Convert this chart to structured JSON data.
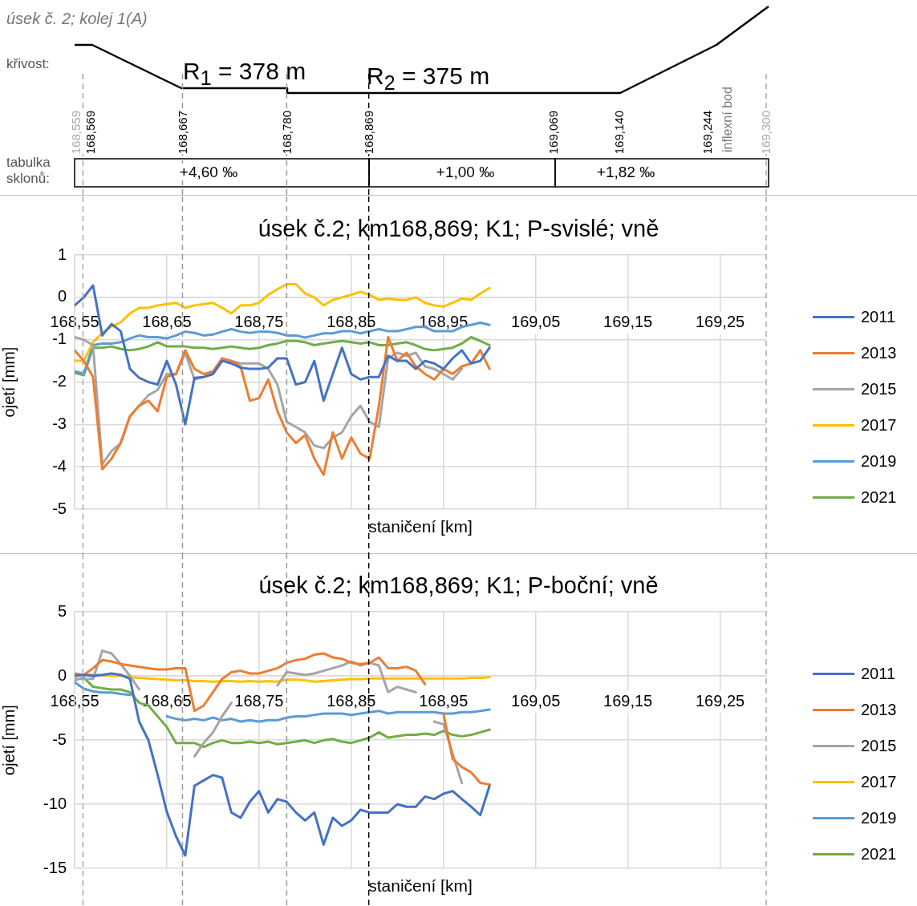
{
  "chart_data": [
    {
      "type": "line",
      "annotations": [
        "úsek č. 2; kolej 1(A)",
        "křivost:",
        "R$_{1}$ = 378 m",
        "R$_{2}$ = 375 m",
        "inflexní bod",
        "tabulka sklonů:",
        "168,559",
        "168,569",
        "168,667",
        "168,780",
        "168,869",
        "169,069",
        "169,140",
        "169,244",
        "169,300",
        "+4,60 ‰",
        "+1,00 ‰",
        "+1,82 ‰"
      ],
      "ref_lines": [
        {
          "axis": "x",
          "value": 168.559,
          "color": "#aaaaaa",
          "line_style": "dashed"
        },
        {
          "axis": "x",
          "value": 168.667,
          "color": "#999999",
          "line_style": "dashed"
        },
        {
          "axis": "x",
          "value": 168.78,
          "color": "#999999",
          "line_style": "dashed"
        },
        {
          "axis": "x",
          "value": 168.869,
          "color": "#000000",
          "line_style": "dashed"
        },
        {
          "axis": "x",
          "value": 169.3,
          "color": "#aaaaaa",
          "line_style": "dashed"
        }
      ],
      "title": "úsek č.2; km168,869; K1; P-svislé; vně",
      "xlabel": "staničení [km]",
      "ylabel": "ojetí [mm]",
      "grid": true,
      "legend": "right",
      "xlim": [
        168.55,
        169.3
      ],
      "xticks": [
        {
          "value": 168.55,
          "label": "168,55"
        },
        {
          "value": 168.65,
          "label": "168,65"
        },
        {
          "value": 168.75,
          "label": "168,75"
        },
        {
          "value": 168.85,
          "label": "168,85"
        },
        {
          "value": 168.95,
          "label": "168,95"
        },
        {
          "value": 169.05,
          "label": "169,05"
        },
        {
          "value": 169.15,
          "label": "169,15"
        },
        {
          "value": 169.25,
          "label": "169,25"
        }
      ],
      "ylim": [
        -5,
        1
      ],
      "yticks": [
        -5,
        -4,
        -3,
        -2,
        -1,
        0,
        1
      ],
      "x": [
        168.55,
        168.56,
        168.57,
        168.58,
        168.59,
        168.6,
        168.61,
        168.62,
        168.63,
        168.64,
        168.65,
        168.66,
        168.67,
        168.68,
        168.69,
        168.7,
        168.71,
        168.72,
        168.73,
        168.74,
        168.75,
        168.76,
        168.77,
        168.78,
        168.79,
        168.8,
        168.81,
        168.82,
        168.83,
        168.84,
        168.85,
        168.86,
        168.87,
        168.88,
        168.89,
        168.9,
        168.91,
        168.92,
        168.93,
        168.94,
        168.95,
        168.96,
        168.97,
        168.98,
        168.99,
        169.0
      ],
      "series": [
        {
          "name": "2011",
          "color": "#4472c4",
          "values": [
            -0.19,
            0,
            0.28,
            -0.9,
            -0.63,
            -0.8,
            -1.69,
            -1.9,
            -2.0,
            -2.06,
            -1.5,
            -2.06,
            -3.0,
            -1.9,
            -1.88,
            -1.81,
            -1.5,
            -1.56,
            -1.66,
            -1.69,
            -1.69,
            -1.66,
            -1.44,
            -1.44,
            -2.06,
            -2.0,
            -1.5,
            -2.44,
            -1.81,
            -1.19,
            -1.81,
            -1.94,
            -1.88,
            -1.88,
            -1.38,
            -1.5,
            -1.5,
            -1.69,
            -1.5,
            -1.56,
            -1.69,
            -1.44,
            -1.25,
            -1.56,
            -1.5,
            -1.19
          ]
        },
        {
          "name": "2013",
          "color": "#ed7d31",
          "values": [
            -1.25,
            -1.5,
            -1.88,
            -4.06,
            -3.81,
            -3.44,
            -2.81,
            -2.56,
            -2.44,
            -2.69,
            -1.88,
            -1.81,
            -1.25,
            -1.69,
            -1.81,
            -1.75,
            -1.44,
            -1.5,
            -1.63,
            -2.44,
            -2.38,
            -1.94,
            -2.69,
            -3.19,
            -3.44,
            -3.25,
            -3.81,
            -4.19,
            -3.19,
            -3.81,
            -3.31,
            -3.69,
            -3.81,
            -2.56,
            -0.94,
            -1.5,
            -1.31,
            -1.63,
            -1.81,
            -1.94,
            -1.69,
            -1.81,
            -1.63,
            -1.56,
            -1.25,
            -1.69
          ]
        },
        {
          "name": "2015",
          "color": "#a5a5a5",
          "values": [
            -0.94,
            -1.0,
            -1.13,
            -3.94,
            -3.63,
            -3.44,
            -2.81,
            -2.56,
            -2.31,
            -2.19,
            -1.81,
            -1.81,
            -1.31,
            -1.94,
            -1.88,
            -1.81,
            -1.5,
            -1.5,
            -1.56,
            -1.56,
            -1.56,
            -1.69,
            -2.06,
            -2.94,
            -3.06,
            -3.19,
            -3.5,
            -3.56,
            -3.31,
            -3.19,
            -2.81,
            -2.56,
            -2.94,
            -3.06,
            -1.44,
            -1.31,
            -1.38,
            -1.31,
            -1.63,
            -1.69,
            -1.81,
            -1.94,
            -1.69,
            null,
            null,
            null
          ]
        },
        {
          "name": "2017",
          "color": "#ffc000",
          "values": [
            -1.5,
            -1.5,
            -1.06,
            -0.84,
            -0.69,
            -0.59,
            -0.38,
            -0.25,
            -0.25,
            -0.19,
            -0.16,
            -0.13,
            -0.25,
            -0.19,
            -0.16,
            -0.13,
            -0.25,
            -0.38,
            -0.19,
            -0.19,
            -0.13,
            0.06,
            0.19,
            0.31,
            0.31,
            0.09,
            0,
            -0.19,
            -0.06,
            0,
            0.06,
            0.13,
            0.06,
            -0.06,
            -0.03,
            -0.06,
            -0.06,
            0,
            -0.13,
            -0.19,
            -0.22,
            -0.13,
            -0.03,
            -0.06,
            0.09,
            0.22
          ]
        },
        {
          "name": "2019",
          "color": "#5b9bd5",
          "values": [
            -1.75,
            -1.8,
            -1.13,
            -1.09,
            -1.09,
            -1.06,
            -0.97,
            -0.9,
            -0.94,
            -0.94,
            -0.97,
            -0.9,
            -0.81,
            -0.84,
            -0.9,
            -0.88,
            -0.81,
            -0.75,
            -0.81,
            -0.84,
            -0.81,
            -0.81,
            -0.84,
            -0.9,
            -0.9,
            -0.95,
            -0.9,
            -0.85,
            -0.85,
            -0.8,
            -0.8,
            -0.85,
            -0.8,
            -0.75,
            -0.8,
            -0.8,
            -0.75,
            -0.7,
            -0.7,
            -0.8,
            -0.8,
            -0.8,
            -0.7,
            -0.65,
            -0.6,
            -0.65
          ]
        },
        {
          "name": "2021",
          "color": "#70ad47",
          "values": [
            -1.78,
            -1.84,
            -1.19,
            -1.19,
            -1.16,
            -1.22,
            -1.25,
            -1.22,
            -1.16,
            -1.06,
            -1.16,
            -1.16,
            -1.16,
            -1.19,
            -1.19,
            -1.22,
            -1.19,
            -1.16,
            -1.19,
            -1.22,
            -1.19,
            -1.13,
            -1.09,
            -1.03,
            -1.03,
            -1.06,
            -1.13,
            -1.09,
            -1.06,
            -1.03,
            -1.06,
            -1.09,
            -1.06,
            -1.13,
            -1.13,
            -1.09,
            -1.06,
            -1.13,
            -1.22,
            -1.25,
            -1.22,
            -1.19,
            -1.09,
            -0.94,
            -1.03,
            -1.13
          ]
        }
      ]
    },
    {
      "type": "line",
      "title": "úsek č.2; km168,869; K1; P-boční; vně",
      "xlabel": "staničení [km]",
      "ylabel": "ojetí [mm]",
      "grid": true,
      "legend": "right",
      "xlim": [
        168.55,
        169.3
      ],
      "xticks": [
        {
          "value": 168.55,
          "label": "168,55"
        },
        {
          "value": 168.65,
          "label": "168,65"
        },
        {
          "value": 168.75,
          "label": "168,75"
        },
        {
          "value": 168.85,
          "label": "168,85"
        },
        {
          "value": 168.95,
          "label": "168,95"
        },
        {
          "value": 169.05,
          "label": "169,05"
        },
        {
          "value": 169.15,
          "label": "169,15"
        },
        {
          "value": 169.25,
          "label": "169,25"
        }
      ],
      "ylim": [
        -15,
        5
      ],
      "yticks": [
        -15,
        -10,
        -5,
        0,
        5
      ],
      "x": [
        168.55,
        168.56,
        168.57,
        168.58,
        168.59,
        168.6,
        168.61,
        168.62,
        168.63,
        168.64,
        168.65,
        168.66,
        168.67,
        168.68,
        168.69,
        168.7,
        168.71,
        168.72,
        168.73,
        168.74,
        168.75,
        168.76,
        168.77,
        168.78,
        168.79,
        168.8,
        168.81,
        168.82,
        168.83,
        168.84,
        168.85,
        168.86,
        168.87,
        168.88,
        168.89,
        168.9,
        168.91,
        168.92,
        168.93,
        168.94,
        168.95,
        168.96,
        168.97,
        168.98,
        168.99,
        169.0
      ],
      "ref_lines": [
        {
          "axis": "x",
          "value": 168.559,
          "color": "#aaaaaa",
          "line_style": "dashed"
        },
        {
          "axis": "x",
          "value": 168.667,
          "color": "#999999",
          "line_style": "dashed"
        },
        {
          "axis": "x",
          "value": 168.78,
          "color": "#999999",
          "line_style": "dashed"
        },
        {
          "axis": "x",
          "value": 168.869,
          "color": "#000000",
          "line_style": "dashed"
        },
        {
          "axis": "x",
          "value": 169.3,
          "color": "#aaaaaa",
          "line_style": "dashed"
        }
      ],
      "series": [
        {
          "name": "2011",
          "color": "#4472c4",
          "values": [
            0,
            0.08,
            0,
            0.08,
            0.19,
            0.08,
            -0.23,
            -3.56,
            -5.0,
            -7.7,
            -10.6,
            -12.5,
            -14.0,
            -8.56,
            -8.15,
            -7.73,
            -7.94,
            -10.65,
            -11.06,
            -9.81,
            -8.98,
            -10.65,
            -9.6,
            -9.81,
            -10.65,
            -11.27,
            -10.65,
            -13.15,
            -11.06,
            -11.69,
            -11.27,
            -10.44,
            -10.65,
            -10.65,
            -10.65,
            -10.0,
            -10.2,
            -10.2,
            -9.4,
            -9.6,
            -9.19,
            -8.98,
            -9.6,
            -10.2,
            -10.85,
            -8.56
          ]
        },
        {
          "name": "2013",
          "color": "#ed7d31",
          "values": [
            0.19,
            0.08,
            0.6,
            1.23,
            1.13,
            0.92,
            0.81,
            0.71,
            0.6,
            0.5,
            0.5,
            0.6,
            0.6,
            -2.73,
            -2.31,
            -1.27,
            -0.23,
            0.29,
            0.4,
            0.19,
            0.19,
            0.4,
            0.6,
            1.02,
            1.23,
            1.33,
            1.65,
            1.75,
            1.44,
            1.33,
            1.02,
            0.92,
            1.02,
            1.44,
            0.6,
            0.6,
            0.71,
            0.4,
            -0.65,
            null,
            -2.94,
            -6.48,
            -7.1,
            -7.52,
            -8.35,
            -8.46
          ]
        },
        {
          "name": "2015",
          "color": "#a5a5a5",
          "values": [
            -0.23,
            -0.23,
            -0.23,
            1.96,
            1.75,
            0.92,
            0,
            -1.06,
            null,
            null,
            null,
            null,
            null,
            -6.27,
            -5.23,
            -4.4,
            -3.15,
            -2.1,
            null,
            null,
            null,
            null,
            -0.75,
            0.29,
            0.19,
            0.08,
            0.19,
            0.4,
            0.6,
            0.81,
            1.13,
            0.81,
            1.02,
            0.81,
            -1.27,
            -0.85,
            -1.06,
            -1.27,
            null,
            -3.56,
            -3.77,
            -6.06,
            -8.35,
            null,
            null,
            null
          ]
        },
        {
          "name": "2017",
          "color": "#ffc000",
          "values": [
            0.1,
            0.1,
            0.1,
            0.05,
            0,
            0,
            -0.1,
            -0.15,
            -0.2,
            -0.25,
            -0.3,
            -0.35,
            -0.35,
            -0.4,
            -0.4,
            -0.45,
            -0.4,
            -0.4,
            -0.45,
            -0.4,
            -0.45,
            -0.4,
            -0.45,
            -0.3,
            -0.3,
            -0.35,
            -0.45,
            -0.4,
            -0.35,
            -0.3,
            -0.25,
            -0.25,
            -0.2,
            -0.2,
            -0.2,
            -0.2,
            -0.2,
            -0.2,
            -0.2,
            -0.2,
            -0.2,
            -0.2,
            -0.2,
            -0.15,
            -0.15,
            -0.1
          ]
        },
        {
          "name": "2019",
          "color": "#5b9bd5",
          "values": [
            -0.5,
            -1.0,
            -1.2,
            -1.3,
            -1.3,
            -1.4,
            -1.48,
            null,
            null,
            null,
            -3.15,
            -3.35,
            -3.46,
            -3.35,
            -3.46,
            -3.25,
            -3.46,
            -3.35,
            -3.56,
            -3.46,
            -3.56,
            -3.46,
            -3.46,
            -3.25,
            -3.15,
            -3.15,
            -3.04,
            -2.94,
            -2.94,
            -2.94,
            -3.04,
            -2.94,
            -2.83,
            -2.73,
            -2.94,
            -2.83,
            -2.83,
            -2.83,
            -2.83,
            -2.83,
            -2.94,
            -2.94,
            -2.83,
            -2.83,
            -2.73,
            -2.63
          ]
        },
        {
          "name": "2021",
          "color": "#70ad47",
          "values": [
            -0.33,
            -0.13,
            -0.85,
            -0.96,
            -1.06,
            -1.06,
            -1.27,
            -2.1,
            -2.31,
            -3.15,
            -3.98,
            -5.23,
            -5.23,
            -5.23,
            -5.54,
            -5.23,
            -5.02,
            -5.23,
            -5.23,
            -5.13,
            -5.23,
            -5.13,
            -5.33,
            -5.23,
            -5.13,
            -5.02,
            -5.23,
            -5.02,
            -4.92,
            -5.13,
            -5.23,
            -5.02,
            -4.81,
            -4.4,
            -4.81,
            -4.71,
            -4.6,
            -4.6,
            -4.5,
            -4.6,
            -4.29,
            -4.6,
            -4.71,
            -4.6,
            -4.4,
            -4.19
          ]
        }
      ]
    }
  ]
}
